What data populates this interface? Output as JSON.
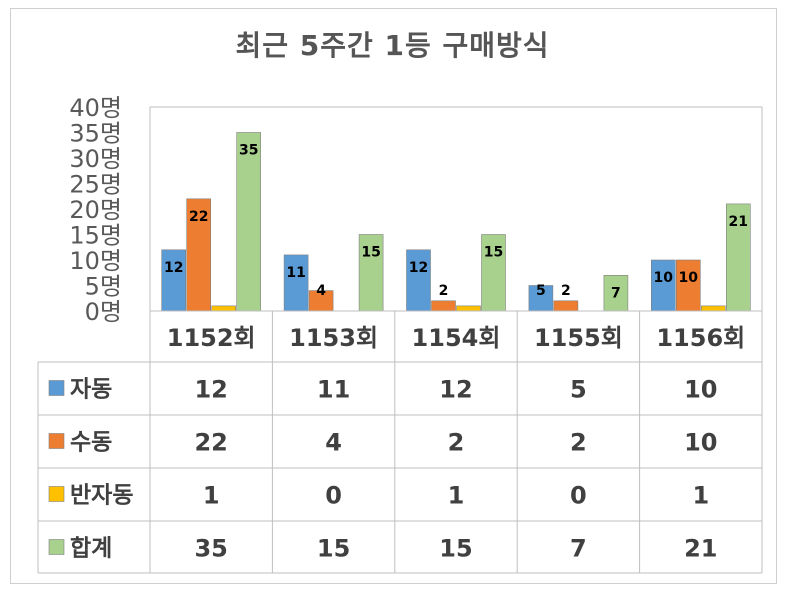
{
  "title": "최근 5주간 1등 구매방식",
  "chart_data": {
    "type": "bar",
    "title": "최근 5주간 1등 구매방식",
    "categories": [
      "1152회",
      "1153회",
      "1154회",
      "1155회",
      "1156회"
    ],
    "series": [
      {
        "name": "자동",
        "color": "#5b9bd5",
        "values": [
          12,
          11,
          12,
          5,
          10
        ]
      },
      {
        "name": "수동",
        "color": "#ed7d31",
        "values": [
          22,
          4,
          2,
          2,
          10
        ]
      },
      {
        "name": "반자동",
        "color": "#ffc000",
        "values": [
          1,
          0,
          1,
          0,
          1
        ]
      },
      {
        "name": "합계",
        "color": "#a9d18e",
        "values": [
          35,
          15,
          15,
          7,
          21
        ]
      }
    ],
    "yticks": [
      "0명",
      "5명",
      "10명",
      "15명",
      "20명",
      "25명",
      "30명",
      "35명",
      "40명"
    ],
    "ylim": [
      0,
      40
    ],
    "grid": false,
    "legend": "data-table"
  }
}
